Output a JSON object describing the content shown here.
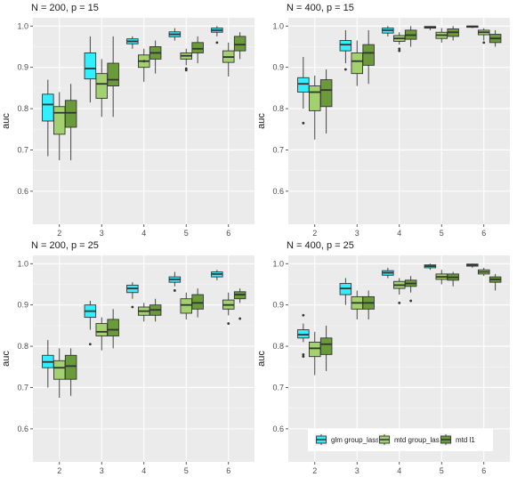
{
  "chart_data": [
    {
      "type": "boxplot",
      "title": "N = 200, p = 15",
      "ylabel": "auc",
      "xlabel": "",
      "categories": [
        "2",
        "3",
        "4",
        "5",
        "6"
      ],
      "ylim": [
        0.52,
        1.02
      ],
      "yticks": [
        0.6,
        0.7,
        0.8,
        0.9,
        1.0
      ],
      "ytick_labels": [
        "0.6",
        "0.7",
        "0.8",
        "0.9",
        "1.0"
      ],
      "series": [
        {
          "name": "glm group_lasso",
          "boxes": [
            {
              "q1": 0.77,
              "median": 0.81,
              "q3": 0.835,
              "whislo": 0.685,
              "whishi": 0.87,
              "outliers": []
            },
            {
              "q1": 0.872,
              "median": 0.897,
              "q3": 0.935,
              "whislo": 0.815,
              "whishi": 0.975,
              "outliers": []
            },
            {
              "q1": 0.957,
              "median": 0.963,
              "q3": 0.969,
              "whislo": 0.945,
              "whishi": 0.975,
              "outliers": []
            },
            {
              "q1": 0.974,
              "median": 0.98,
              "q3": 0.986,
              "whislo": 0.965,
              "whishi": 0.995,
              "outliers": []
            },
            {
              "q1": 0.985,
              "median": 0.99,
              "q3": 0.995,
              "whislo": 0.975,
              "whishi": 1.0,
              "outliers": [
                0.96
              ]
            }
          ]
        },
        {
          "name": "mtd group_lasso",
          "boxes": [
            {
              "q1": 0.738,
              "median": 0.79,
              "q3": 0.805,
              "whislo": 0.675,
              "whishi": 0.84,
              "outliers": []
            },
            {
              "q1": 0.825,
              "median": 0.86,
              "q3": 0.885,
              "whislo": 0.78,
              "whishi": 0.92,
              "outliers": []
            },
            {
              "q1": 0.9,
              "median": 0.915,
              "q3": 0.93,
              "whislo": 0.865,
              "whishi": 0.945,
              "outliers": [
                0.915
              ]
            },
            {
              "q1": 0.92,
              "median": 0.928,
              "q3": 0.935,
              "whislo": 0.905,
              "whishi": 0.945,
              "outliers": [
                0.897,
                0.893
              ]
            },
            {
              "q1": 0.912,
              "median": 0.925,
              "q3": 0.94,
              "whislo": 0.878,
              "whishi": 0.96,
              "outliers": []
            }
          ]
        },
        {
          "name": "mtd l1",
          "boxes": [
            {
              "q1": 0.755,
              "median": 0.79,
              "q3": 0.82,
              "whislo": 0.675,
              "whishi": 0.86,
              "outliers": []
            },
            {
              "q1": 0.855,
              "median": 0.87,
              "q3": 0.91,
              "whislo": 0.78,
              "whishi": 0.975,
              "outliers": []
            },
            {
              "q1": 0.92,
              "median": 0.935,
              "q3": 0.95,
              "whislo": 0.885,
              "whishi": 0.965,
              "outliers": []
            },
            {
              "q1": 0.935,
              "median": 0.945,
              "q3": 0.96,
              "whislo": 0.91,
              "whishi": 0.975,
              "outliers": []
            },
            {
              "q1": 0.94,
              "median": 0.955,
              "q3": 0.975,
              "whislo": 0.92,
              "whishi": 0.985,
              "outliers": []
            }
          ]
        }
      ]
    },
    {
      "type": "boxplot",
      "title": "N = 400, p = 15",
      "ylabel": "auc",
      "xlabel": "",
      "categories": [
        "2",
        "3",
        "4",
        "5",
        "6"
      ],
      "ylim": [
        0.52,
        1.02
      ],
      "yticks": [
        0.6,
        0.7,
        0.8,
        0.9,
        1.0
      ],
      "ytick_labels": [
        "0.6",
        "0.7",
        "0.8",
        "0.9",
        "1.0"
      ],
      "series": [
        {
          "name": "glm group_lasso",
          "boxes": [
            {
              "q1": 0.84,
              "median": 0.86,
              "q3": 0.875,
              "whislo": 0.8,
              "whishi": 0.925,
              "outliers": [
                0.765
              ]
            },
            {
              "q1": 0.94,
              "median": 0.955,
              "q3": 0.965,
              "whislo": 0.91,
              "whishi": 0.99,
              "outliers": [
                0.895
              ]
            },
            {
              "q1": 0.983,
              "median": 0.99,
              "q3": 0.995,
              "whislo": 0.975,
              "whishi": 1.0,
              "outliers": []
            },
            {
              "q1": 0.995,
              "median": 0.997,
              "q3": 0.999,
              "whislo": 0.99,
              "whishi": 1.0,
              "outliers": []
            },
            {
              "q1": 0.997,
              "median": 0.999,
              "q3": 1.0,
              "whislo": 0.995,
              "whishi": 1.0,
              "outliers": []
            }
          ]
        },
        {
          "name": "mtd group_lasso",
          "boxes": [
            {
              "q1": 0.795,
              "median": 0.84,
              "q3": 0.855,
              "whislo": 0.725,
              "whishi": 0.88,
              "outliers": []
            },
            {
              "q1": 0.885,
              "median": 0.915,
              "q3": 0.935,
              "whislo": 0.855,
              "whishi": 0.965,
              "outliers": []
            },
            {
              "q1": 0.963,
              "median": 0.97,
              "q3": 0.977,
              "whislo": 0.955,
              "whishi": 0.985,
              "outliers": [
                0.945,
                0.94
              ]
            },
            {
              "q1": 0.97,
              "median": 0.978,
              "q3": 0.985,
              "whislo": 0.96,
              "whishi": 0.995,
              "outliers": []
            },
            {
              "q1": 0.979,
              "median": 0.985,
              "q3": 0.99,
              "whislo": 0.965,
              "whishi": 0.995,
              "outliers": [
                0.96
              ]
            }
          ]
        },
        {
          "name": "mtd l1",
          "boxes": [
            {
              "q1": 0.805,
              "median": 0.845,
              "q3": 0.87,
              "whislo": 0.74,
              "whishi": 0.895,
              "outliers": []
            },
            {
              "q1": 0.905,
              "median": 0.935,
              "q3": 0.955,
              "whislo": 0.86,
              "whishi": 0.99,
              "outliers": []
            },
            {
              "q1": 0.968,
              "median": 0.978,
              "q3": 0.99,
              "whislo": 0.95,
              "whishi": 1.0,
              "outliers": []
            },
            {
              "q1": 0.975,
              "median": 0.985,
              "q3": 0.993,
              "whislo": 0.965,
              "whishi": 1.0,
              "outliers": []
            },
            {
              "q1": 0.96,
              "median": 0.97,
              "q3": 0.98,
              "whislo": 0.95,
              "whishi": 0.99,
              "outliers": []
            }
          ]
        }
      ]
    },
    {
      "type": "boxplot",
      "title": "N = 200, p = 25",
      "ylabel": "auc",
      "xlabel": "",
      "categories": [
        "2",
        "3",
        "4",
        "5",
        "6"
      ],
      "ylim": [
        0.52,
        1.02
      ],
      "yticks": [
        0.6,
        0.7,
        0.8,
        0.9,
        1.0
      ],
      "ytick_labels": [
        "0.6",
        "0.7",
        "0.8",
        "0.9",
        "1.0"
      ],
      "series": [
        {
          "name": "glm group_lasso",
          "boxes": [
            {
              "q1": 0.748,
              "median": 0.762,
              "q3": 0.778,
              "whislo": 0.7,
              "whishi": 0.815,
              "outliers": []
            },
            {
              "q1": 0.87,
              "median": 0.885,
              "q3": 0.9,
              "whislo": 0.84,
              "whishi": 0.91,
              "outliers": [
                0.805
              ]
            },
            {
              "q1": 0.93,
              "median": 0.94,
              "q3": 0.948,
              "whislo": 0.915,
              "whishi": 0.955,
              "outliers": [
                0.895
              ]
            },
            {
              "q1": 0.955,
              "median": 0.962,
              "q3": 0.968,
              "whislo": 0.945,
              "whishi": 0.98,
              "outliers": [
                0.935
              ]
            },
            {
              "q1": 0.968,
              "median": 0.975,
              "q3": 0.98,
              "whislo": 0.96,
              "whishi": 0.985,
              "outliers": []
            }
          ]
        },
        {
          "name": "mtd group_lasso",
          "boxes": [
            {
              "q1": 0.72,
              "median": 0.748,
              "q3": 0.765,
              "whislo": 0.675,
              "whishi": 0.795,
              "outliers": []
            },
            {
              "q1": 0.825,
              "median": 0.835,
              "q3": 0.855,
              "whislo": 0.79,
              "whishi": 0.87,
              "outliers": []
            },
            {
              "q1": 0.875,
              "median": 0.885,
              "q3": 0.895,
              "whislo": 0.86,
              "whishi": 0.905,
              "outliers": []
            },
            {
              "q1": 0.88,
              "median": 0.9,
              "q3": 0.915,
              "whislo": 0.865,
              "whishi": 0.93,
              "outliers": []
            },
            {
              "q1": 0.89,
              "median": 0.9,
              "q3": 0.912,
              "whislo": 0.875,
              "whishi": 0.93,
              "outliers": [
                0.855
              ]
            }
          ]
        },
        {
          "name": "mtd l1",
          "boxes": [
            {
              "q1": 0.72,
              "median": 0.752,
              "q3": 0.778,
              "whislo": 0.68,
              "whishi": 0.795,
              "outliers": []
            },
            {
              "q1": 0.825,
              "median": 0.84,
              "q3": 0.865,
              "whislo": 0.795,
              "whishi": 0.89,
              "outliers": []
            },
            {
              "q1": 0.875,
              "median": 0.888,
              "q3": 0.9,
              "whislo": 0.86,
              "whishi": 0.915,
              "outliers": []
            },
            {
              "q1": 0.89,
              "median": 0.905,
              "q3": 0.925,
              "whislo": 0.87,
              "whishi": 0.94,
              "outliers": []
            },
            {
              "q1": 0.915,
              "median": 0.925,
              "q3": 0.932,
              "whislo": 0.905,
              "whishi": 0.94,
              "outliers": [
                0.867
              ]
            }
          ]
        }
      ]
    },
    {
      "type": "boxplot",
      "title": "N = 400, p = 25",
      "ylabel": "auc",
      "xlabel": "",
      "categories": [
        "2",
        "3",
        "4",
        "5",
        "6"
      ],
      "ylim": [
        0.52,
        1.02
      ],
      "yticks": [
        0.6,
        0.7,
        0.8,
        0.9,
        1.0
      ],
      "ytick_labels": [
        "0.6",
        "0.7",
        "0.8",
        "0.9",
        "1.0"
      ],
      "legend": {
        "position": "bottom-inside",
        "entries": [
          "glm group_lasso",
          "mtd group_lasso",
          "mtd l1"
        ]
      },
      "series": [
        {
          "name": "glm group_lasso",
          "boxes": [
            {
              "q1": 0.82,
              "median": 0.828,
              "q3": 0.84,
              "whislo": 0.81,
              "whishi": 0.855,
              "outliers": [
                0.875,
                0.78,
                0.775
              ]
            },
            {
              "q1": 0.925,
              "median": 0.94,
              "q3": 0.952,
              "whislo": 0.9,
              "whishi": 0.965,
              "outliers": []
            },
            {
              "q1": 0.972,
              "median": 0.978,
              "q3": 0.983,
              "whislo": 0.965,
              "whishi": 0.99,
              "outliers": []
            },
            {
              "q1": 0.99,
              "median": 0.994,
              "q3": 0.997,
              "whislo": 0.985,
              "whishi": 1.0,
              "outliers": []
            },
            {
              "q1": 0.994,
              "median": 0.997,
              "q3": 0.999,
              "whislo": 0.99,
              "whishi": 1.0,
              "outliers": []
            }
          ]
        },
        {
          "name": "mtd group_lasso",
          "boxes": [
            {
              "q1": 0.775,
              "median": 0.795,
              "q3": 0.81,
              "whislo": 0.73,
              "whishi": 0.835,
              "outliers": []
            },
            {
              "q1": 0.89,
              "median": 0.905,
              "q3": 0.92,
              "whislo": 0.865,
              "whishi": 0.935,
              "outliers": []
            },
            {
              "q1": 0.94,
              "median": 0.948,
              "q3": 0.957,
              "whislo": 0.925,
              "whishi": 0.965,
              "outliers": [
                0.905
              ]
            },
            {
              "q1": 0.962,
              "median": 0.968,
              "q3": 0.975,
              "whislo": 0.95,
              "whishi": 0.985,
              "outliers": []
            },
            {
              "q1": 0.975,
              "median": 0.98,
              "q3": 0.985,
              "whislo": 0.97,
              "whishi": 0.99,
              "outliers": []
            }
          ]
        },
        {
          "name": "mtd l1",
          "boxes": [
            {
              "q1": 0.78,
              "median": 0.805,
              "q3": 0.82,
              "whislo": 0.74,
              "whishi": 0.85,
              "outliers": []
            },
            {
              "q1": 0.89,
              "median": 0.905,
              "q3": 0.92,
              "whislo": 0.865,
              "whishi": 0.935,
              "outliers": []
            },
            {
              "q1": 0.945,
              "median": 0.952,
              "q3": 0.96,
              "whislo": 0.93,
              "whishi": 0.97,
              "outliers": [
                0.91
              ]
            },
            {
              "q1": 0.96,
              "median": 0.967,
              "q3": 0.975,
              "whislo": 0.945,
              "whishi": 0.98,
              "outliers": []
            },
            {
              "q1": 0.955,
              "median": 0.962,
              "q3": 0.968,
              "whislo": 0.935,
              "whishi": 0.975,
              "outliers": []
            }
          ]
        }
      ]
    }
  ],
  "colors": {
    "panel_bg": "#ebebeb",
    "grid_major": "#ffffff",
    "grid_minor": "#f5f5f5",
    "series": [
      "#33eeff",
      "#a3d16f",
      "#6b9a3a"
    ],
    "outline": "#333333",
    "text": "#4d4d4d"
  }
}
